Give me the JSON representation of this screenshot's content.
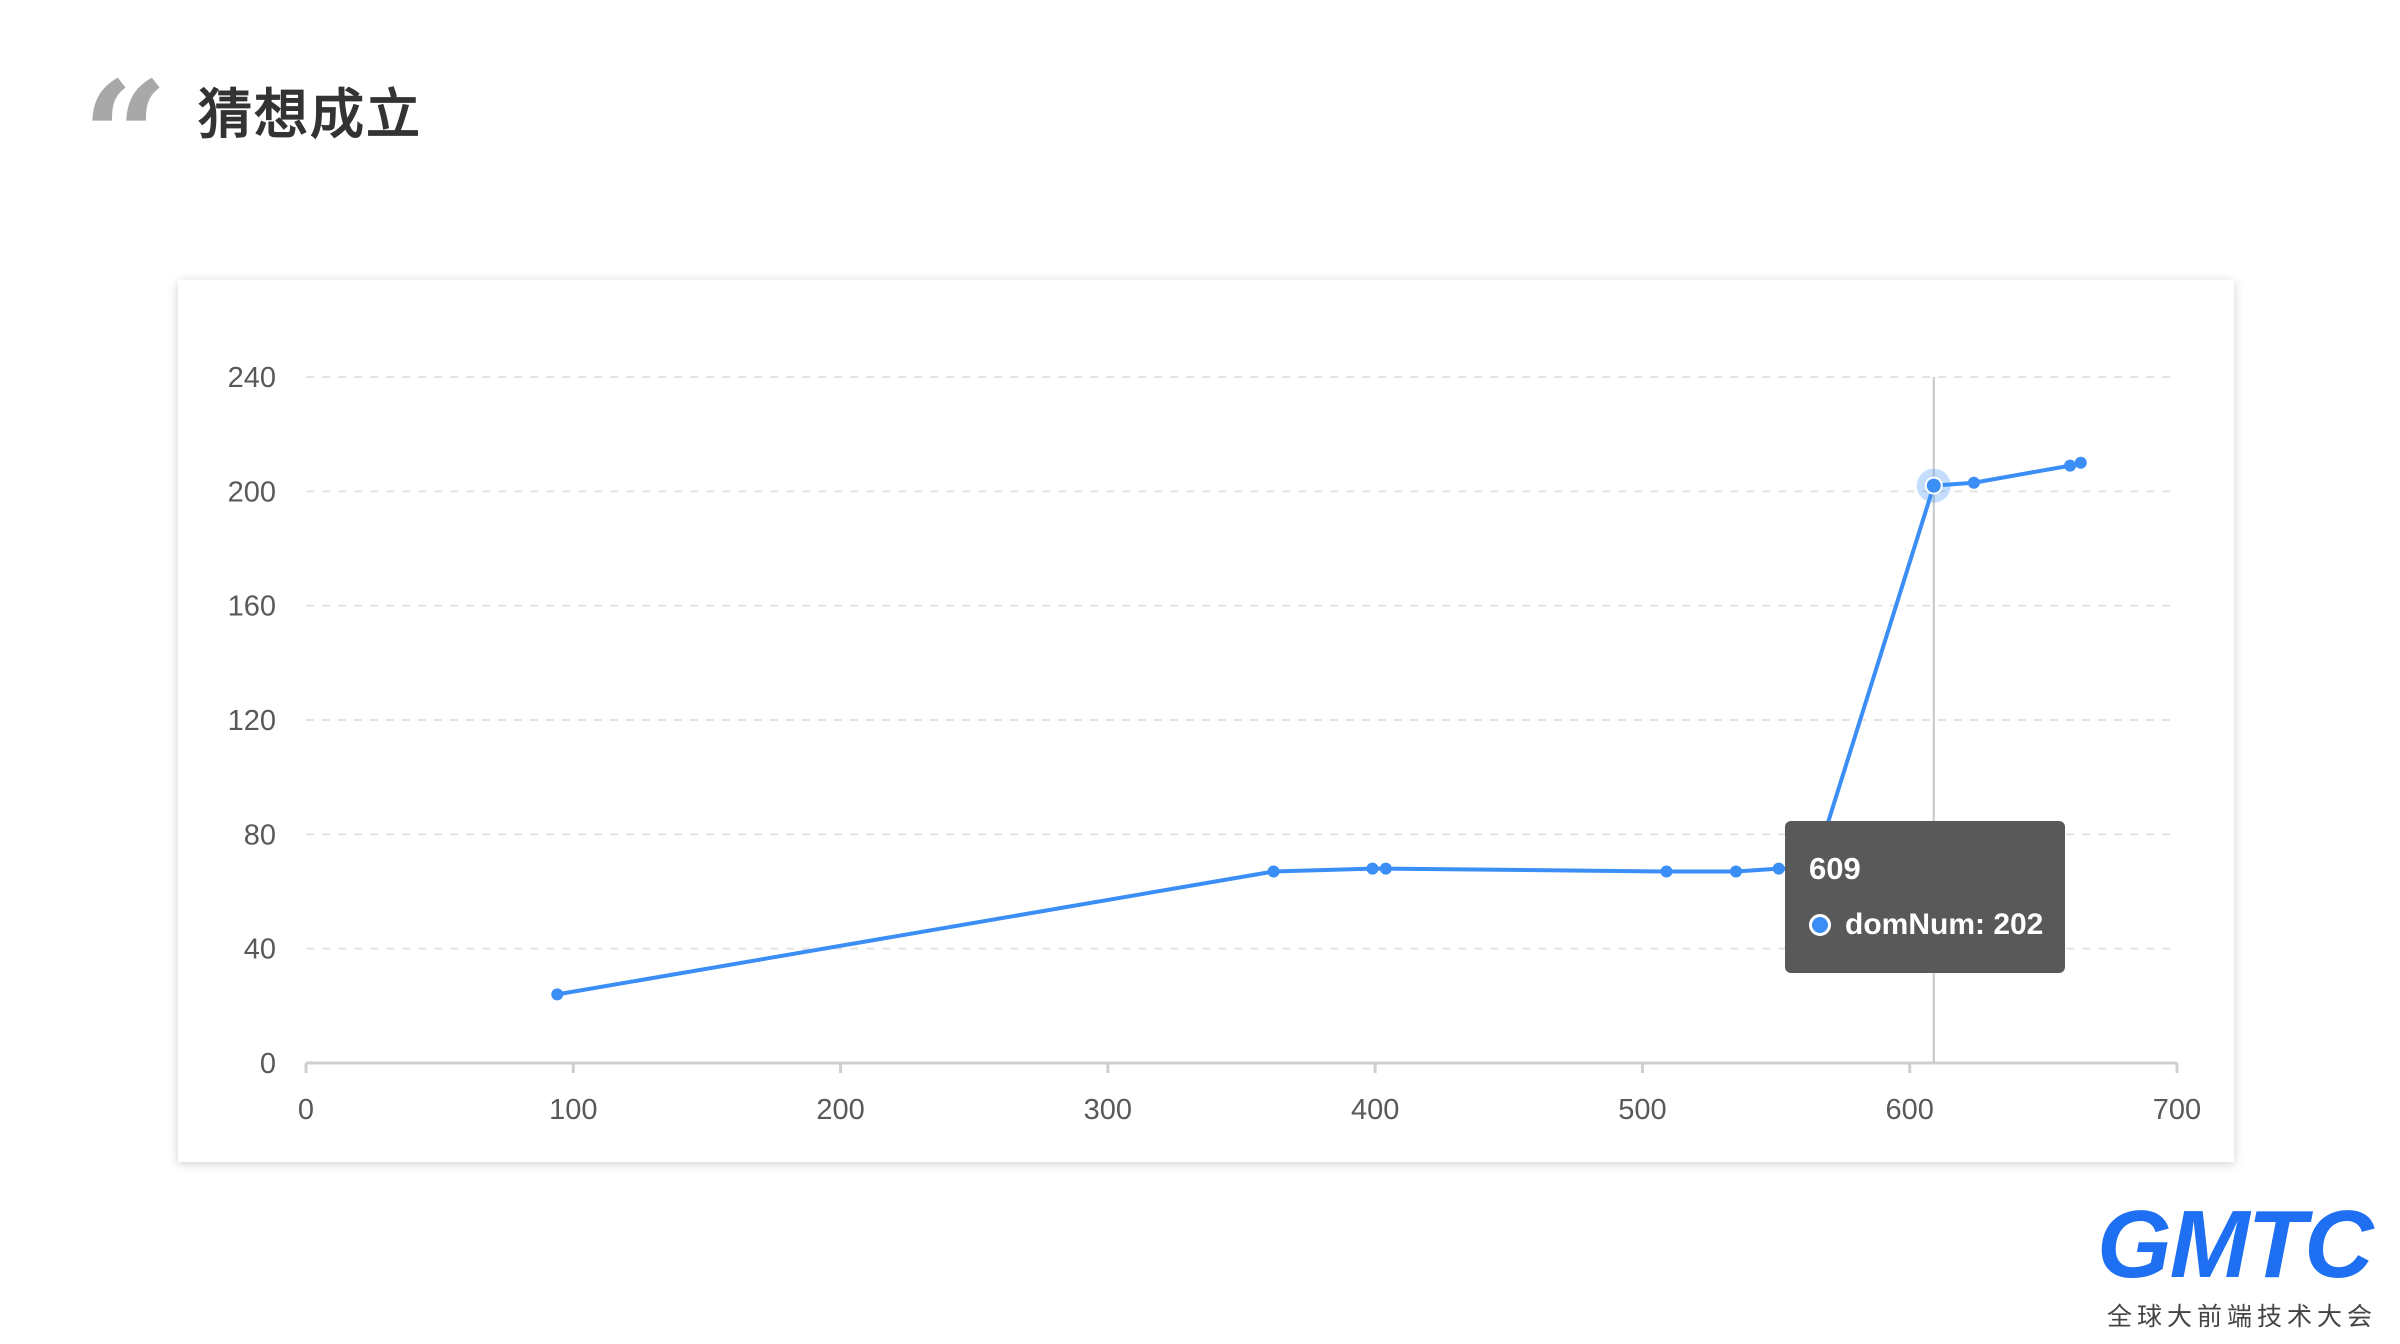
{
  "slide": {
    "quote_glyph": "“",
    "title": "猜想成立"
  },
  "logo": {
    "mark": "GMTC",
    "subtitle": "全球大前端技术大会",
    "color": "#1e6ff1"
  },
  "tooltip": {
    "title": "609",
    "series_label": "domNum",
    "value": "202",
    "text": "domNum: 202"
  },
  "chart_data": {
    "type": "line",
    "title": "",
    "xlabel": "",
    "ylabel": "",
    "xlim": [
      0,
      700
    ],
    "ylim": [
      0,
      240
    ],
    "x_ticks": [
      0,
      100,
      200,
      300,
      400,
      500,
      600,
      700
    ],
    "y_ticks": [
      0,
      40,
      80,
      120,
      160,
      200,
      240
    ],
    "grid": "horizontal dashed",
    "series": [
      {
        "color": "#3a8ef5",
        "x": [
          94,
          362,
          399,
          404,
          509,
          535,
          551,
          564,
          609,
          624,
          660,
          664
        ],
        "y": [
          24,
          67,
          68,
          68,
          67,
          67,
          68,
          68,
          202,
          203,
          209,
          210
        ]
      }
    ],
    "highlight": {
      "x": 609,
      "y": 202
    }
  }
}
